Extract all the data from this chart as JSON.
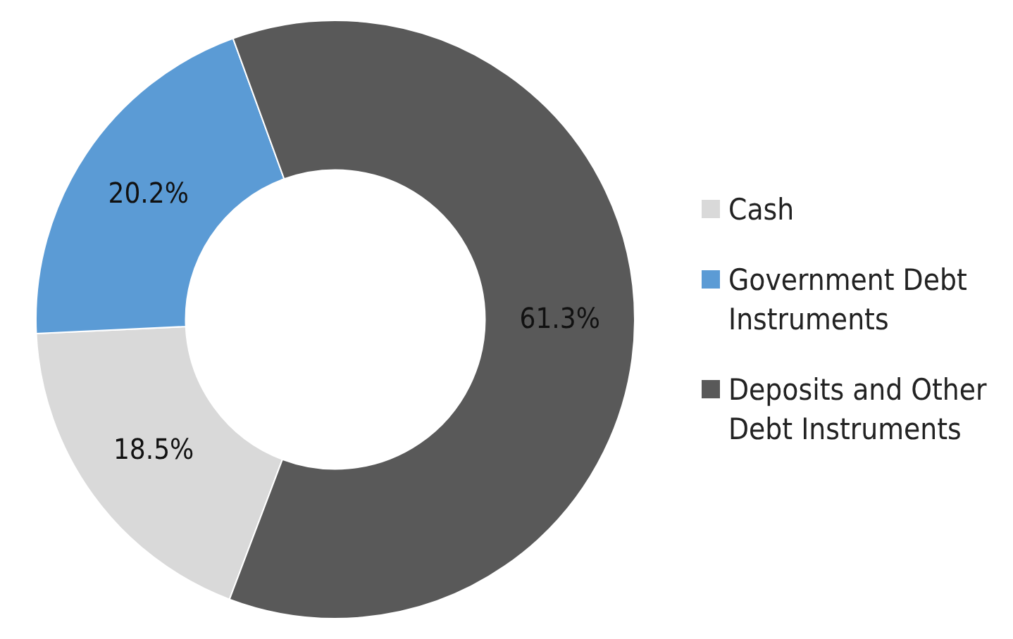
{
  "chart_data": {
    "type": "donut",
    "categories": [
      "Cash",
      "Government Debt Instruments",
      "Deposits and Other Debt Instruments"
    ],
    "values": [
      18.5,
      20.2,
      61.3
    ],
    "colors": [
      "#d9d9d9",
      "#5b9bd5",
      "#595959"
    ],
    "value_labels": [
      "18.5%",
      "20.2%",
      "61.3%"
    ],
    "legend": "right"
  }
}
